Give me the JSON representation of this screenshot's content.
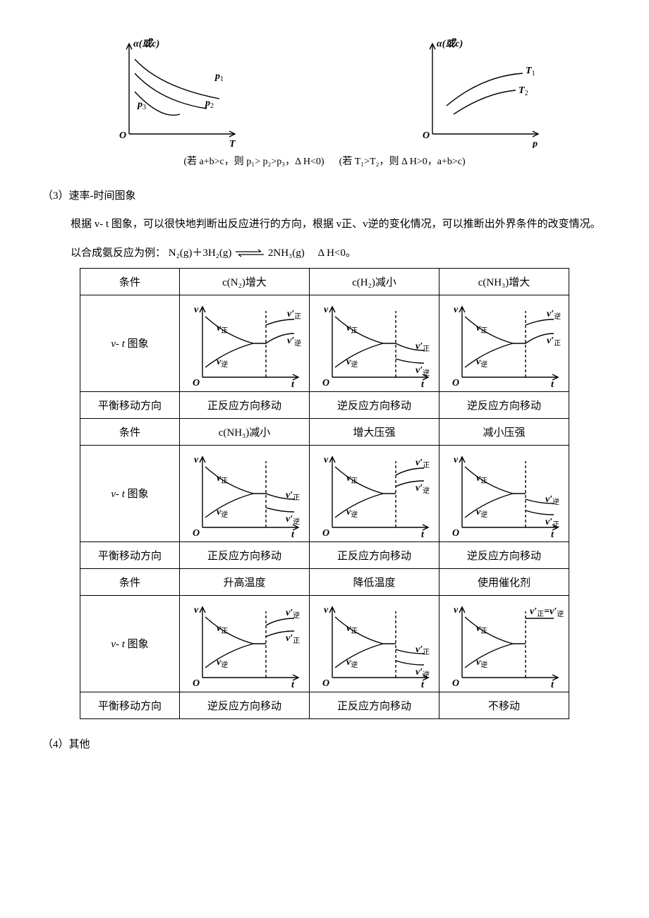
{
  "top_graphs": {
    "left": {
      "y_label": "α(或c)",
      "x_label": "T",
      "origin": "O",
      "curves": [
        "p₁",
        "p₂",
        "p₃"
      ],
      "caption": "(若 a+b>c，则 p₁> p₂>p₃，Δ H<0)"
    },
    "right": {
      "y_label": "α(或c)",
      "x_label": "p",
      "origin": "O",
      "curves": [
        "T₁",
        "T₂"
      ],
      "caption": "(若 T₁>T₂，则 Δ H>0，a+b>c)"
    }
  },
  "section3": {
    "heading": "（3）速率-时间图象",
    "para": "根据 v- t 图象，可以很快地判断出反应进行的方向，根据 v正、v逆的变化情况，可以推断出外界条件的改变情况。",
    "eq_prefix": "以合成氨反应为例：",
    "eq_left": "N₂(g)＋3H₂(g)",
    "eq_right": "2NH₃(g)",
    "eq_dh": "Δ H<0。"
  },
  "row_labels": {
    "cond": "条件",
    "graph": "v- t 图象",
    "dir": "平衡移动方向"
  },
  "graph_labels": {
    "y": "v",
    "x": "t",
    "origin": "O",
    "vf": "v正",
    "vr": "v逆",
    "vfp": "v′正",
    "vrp": "v′逆",
    "vep": "v′正=v′逆"
  },
  "cells": [
    {
      "cond": "c(N₂)增大",
      "type": "jump_split",
      "top_after": "vfp",
      "bot_after": "vrp",
      "jump": "up",
      "dir": "正反应方向移动"
    },
    {
      "cond": "c(H₂)减小",
      "type": "drop_split",
      "top_after": "vfp",
      "bot_after": "vrp",
      "dir": "逆反应方向移动"
    },
    {
      "cond": "c(NH₃)增大",
      "type": "jump_split",
      "top_after": "vrp",
      "bot_after": "vfp",
      "jump": "up",
      "dir": "逆反应方向移动"
    },
    {
      "cond": "c(NH₃)减小",
      "type": "drop_split",
      "top_after": "vfp",
      "bot_after": "vrp",
      "variant": "low",
      "dir": "正反应方向移动"
    },
    {
      "cond": "增大压强",
      "type": "both_up",
      "top_after": "vfp",
      "bot_after": "vrp",
      "dir": "正反应方向移动"
    },
    {
      "cond": "减小压强",
      "type": "both_down",
      "top_after": "vrp",
      "bot_after": "vfp",
      "dir": "逆反应方向移动"
    },
    {
      "cond": "升高温度",
      "type": "both_up",
      "top_after": "vrp",
      "bot_after": "vfp",
      "dir": "逆反应方向移动"
    },
    {
      "cond": "降低温度",
      "type": "both_down",
      "top_after": "vfp",
      "bot_after": "vrp",
      "dir": "正反应方向移动"
    },
    {
      "cond": "使用催化剂",
      "type": "single_up",
      "label_after": "vep",
      "dir": "不移动"
    }
  ],
  "section4": "（4）其他",
  "style": {
    "stroke": "#000000",
    "stroke_width": 1.4,
    "font": "italic 13px 'Times New Roman', serif",
    "font_bold": "bold italic 14px 'Times New Roman', serif",
    "font_sub": "10px 'SimSun', serif",
    "dash": "4 3"
  }
}
